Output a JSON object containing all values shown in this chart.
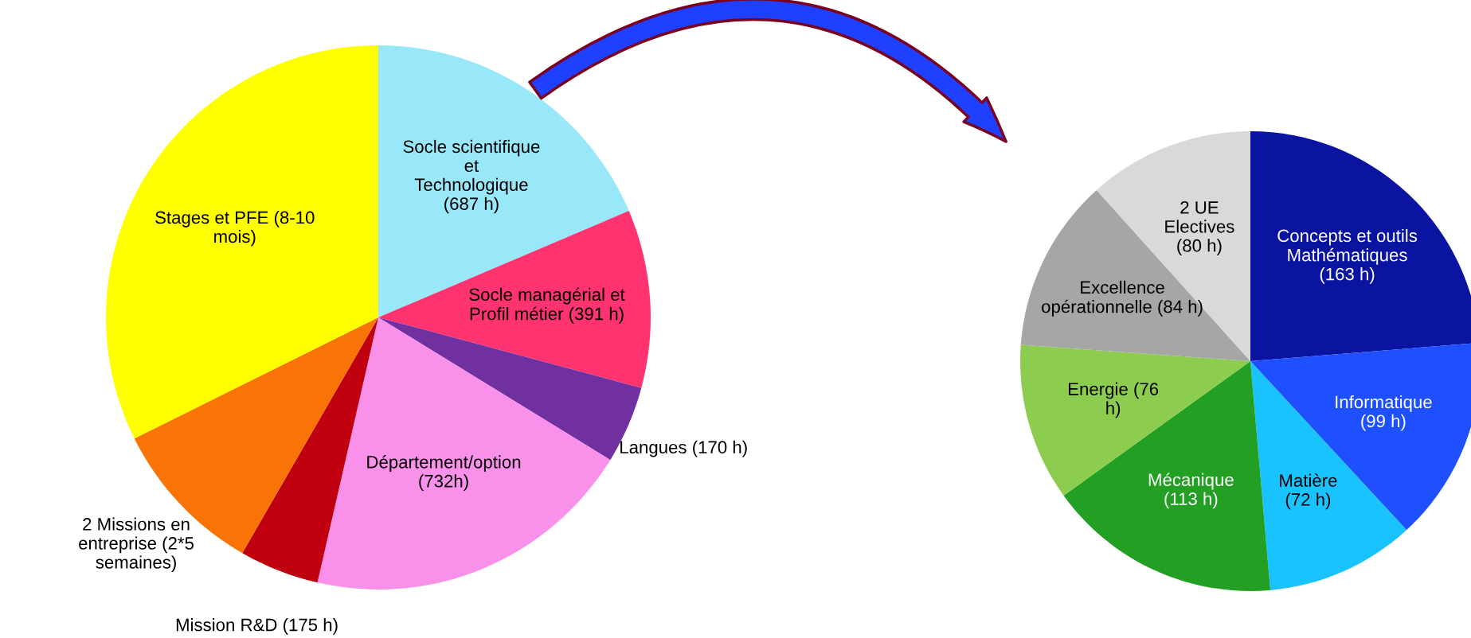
{
  "chart_data": [
    {
      "type": "pie",
      "categories": [
        "Socle scientifique\net\nTechnologique\n(687 h)",
        "Socle managérial et\nProfil métier (391 h)",
        "Langues (170 h)",
        "Département/option\n(732h)",
        "Mission R&D (175 h)",
        "2 Missions en\nentreprise (2*5\nsemaines)",
        "Stages et PFE (8-10\nmois)"
      ],
      "values": [
        687,
        391,
        170,
        732,
        175,
        345,
        1195
      ],
      "colors": [
        "#99e8fa",
        "#ff3370",
        "#7030a0",
        "#f990ea",
        "#c00010",
        "#f97306",
        "#ffff00"
      ]
    },
    {
      "type": "pie",
      "categories": [
        "Concepts et outils\nMathématiques\n(163 h)",
        "Informatique\n(99 h)",
        "Matière\n(72 h)",
        "Mécanique\n(113 h)",
        "Energie (76\nh)",
        "Excellence\nopérationnelle (84 h)",
        "2 UE\nElectives\n(80 h)"
      ],
      "values": [
        163,
        99,
        72,
        113,
        76,
        84,
        80
      ],
      "colors": [
        "#0a14a0",
        "#1e50ff",
        "#19c3ff",
        "#23a023",
        "#8ccd50",
        "#a6a6a6",
        "#d9d9d9"
      ]
    }
  ]
}
